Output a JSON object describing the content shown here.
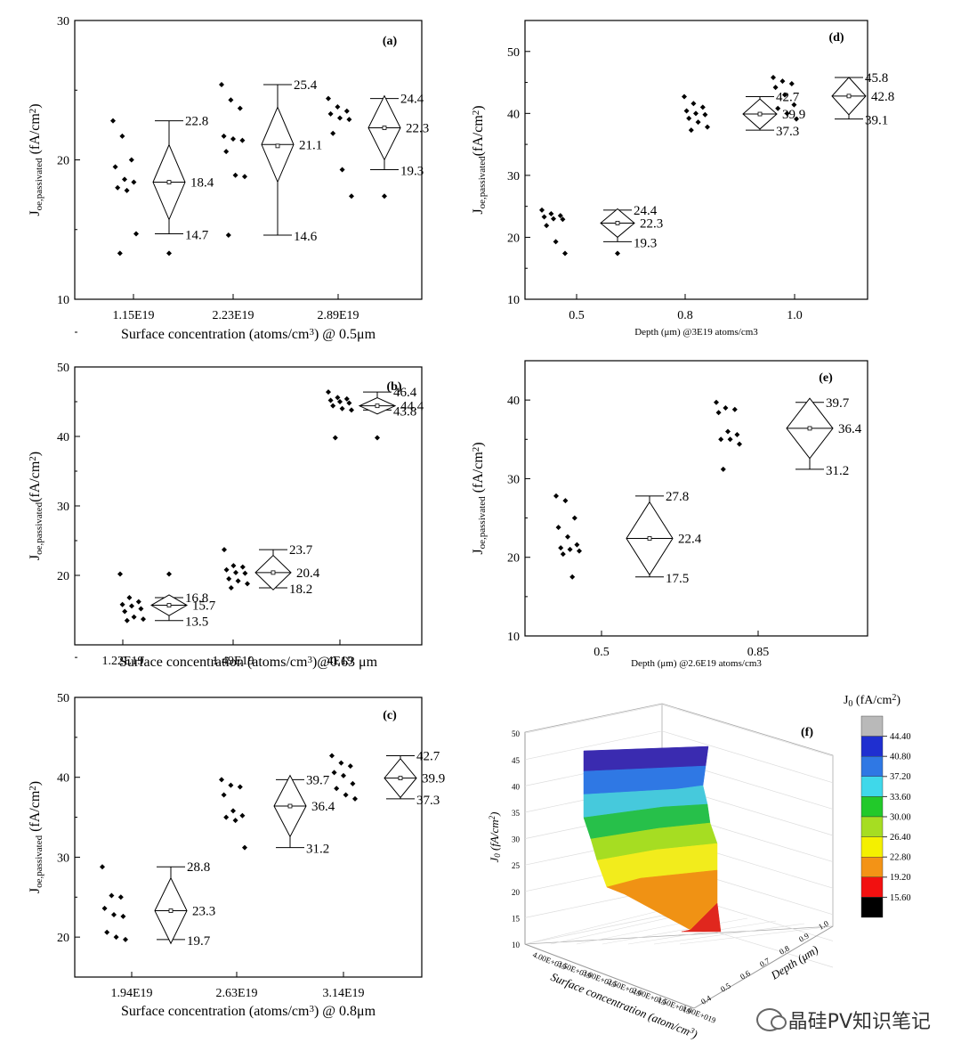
{
  "chart_data": [
    {
      "panel": "(a)",
      "type": "scatter",
      "xlabel_parts": [
        "Surface concentration ",
        "(",
        "atoms/cm",
        "3",
        ") @ 0.5μm"
      ],
      "ylabel_parts": [
        "J",
        "oe,passivated",
        " (fA/cm",
        "2",
        ")"
      ],
      "ylim": [
        10,
        30
      ],
      "yticks": [
        10,
        20,
        30
      ],
      "categories": [
        "1.15E19",
        "2.23E19",
        "2.89E19"
      ],
      "points": [
        [
          22.8,
          21.7,
          20.0,
          19.5,
          18.6,
          18.4,
          18.0,
          17.8,
          14.7,
          13.3
        ],
        [
          25.4,
          24.3,
          23.7,
          21.7,
          21.5,
          21.4,
          20.6,
          18.9,
          18.8,
          14.6
        ],
        [
          24.4,
          23.8,
          23.5,
          23.3,
          23.0,
          22.9,
          21.9,
          19.3,
          17.4
        ]
      ],
      "box": [
        {
          "max": 22.8,
          "min": 14.7,
          "center": 18.4,
          "mean": 18.4,
          "outlier": 13.3,
          "labels": {
            "top": "22.8",
            "bottom": "14.7",
            "center": "18.4"
          }
        },
        {
          "max": 25.4,
          "min": 14.6,
          "center": 21.1,
          "mean": 21.0,
          "labels": {
            "top": "25.4",
            "bottom": "14.6",
            "center": "21.1"
          }
        },
        {
          "max": 24.4,
          "min": 19.3,
          "center": 22.3,
          "mean": 22.3,
          "outlier": 17.4,
          "labels": {
            "top": "24.4",
            "bottom": "19.3",
            "center": "22.3"
          }
        }
      ]
    },
    {
      "panel": "(b)",
      "type": "scatter",
      "xlabel_parts": [
        "Surface concentration (atoms/cm",
        "3",
        ")@0.63 μm"
      ],
      "ylabel_parts": [
        "J",
        "oe,passivated",
        "(fA/cm",
        "2",
        ")"
      ],
      "ylim": [
        10,
        50
      ],
      "yticks": [
        20,
        30,
        40,
        50
      ],
      "categories": [
        "1.22E19",
        "1.49E19",
        "4E19"
      ],
      "points": [
        [
          20.2,
          16.8,
          16.2,
          15.8,
          15.6,
          15.2,
          14.8,
          14.0,
          13.7,
          13.5
        ],
        [
          23.7,
          21.4,
          21.2,
          20.8,
          20.4,
          20.3,
          19.5,
          19.2,
          18.8,
          18.2
        ],
        [
          46.4,
          45.6,
          45.4,
          45.2,
          45.0,
          44.8,
          44.4,
          44.0,
          43.8,
          39.8
        ]
      ],
      "box": [
        {
          "max": 16.8,
          "min": 13.5,
          "center": 15.7,
          "mean": 15.7,
          "outlier": 20.2,
          "labels": {
            "top": "16.8",
            "bottom": "13.5",
            "center": "15.7"
          }
        },
        {
          "max": 23.7,
          "min": 18.2,
          "center": 20.4,
          "mean": 20.4,
          "labels": {
            "top": "23.7",
            "bottom": "18.2",
            "center": "20.4"
          }
        },
        {
          "max": 46.4,
          "min": 43.8,
          "center": 44.4,
          "mean": 44.4,
          "outlier": 39.8,
          "labels": {
            "top": "46.4",
            "bottom": "43.8",
            "center": "44.4"
          }
        }
      ]
    },
    {
      "panel": "(c)",
      "type": "scatter",
      "xlabel_parts": [
        "Surface concentration ",
        "(",
        "atoms/cm",
        "3",
        ") @ 0.8μm"
      ],
      "ylabel_parts": [
        "J",
        "oe,passivated",
        " (fA/cm",
        "2",
        ")"
      ],
      "ylim": [
        15,
        50
      ],
      "yticks": [
        20,
        30,
        40,
        50
      ],
      "categories": [
        "1.94E19",
        "2.63E19",
        "3.14E19"
      ],
      "points": [
        [
          28.8,
          25.2,
          25.0,
          23.6,
          22.8,
          22.6,
          20.6,
          20.0,
          19.7
        ],
        [
          39.7,
          39.0,
          38.8,
          37.8,
          35.8,
          35.2,
          35.0,
          34.6,
          31.2
        ],
        [
          42.7,
          41.8,
          41.4,
          40.6,
          40.2,
          39.2,
          38.6,
          37.8,
          37.3
        ]
      ],
      "box": [
        {
          "max": 28.8,
          "min": 19.7,
          "center": 23.3,
          "mean": 23.3,
          "labels": {
            "top": "28.8",
            "bottom": "19.7",
            "center": "23.3"
          }
        },
        {
          "max": 39.7,
          "min": 31.2,
          "center": 36.4,
          "mean": 36.4,
          "labels": {
            "top": "39.7",
            "bottom": "31.2",
            "center": "36.4"
          }
        },
        {
          "max": 42.7,
          "min": 37.3,
          "center": 39.9,
          "mean": 39.9,
          "labels": {
            "top": "42.7",
            "bottom": "37.3",
            "center": "39.9"
          }
        }
      ]
    },
    {
      "panel": "(d)",
      "type": "scatter",
      "xlabel_parts": [
        "Depth (μm) @3E19 atoms/cm",
        "3"
      ],
      "ylabel_parts": [
        "J",
        "oe,passivated",
        "(fA/cm",
        "2",
        ")"
      ],
      "ylim": [
        10,
        55
      ],
      "yticks": [
        10,
        20,
        30,
        40,
        50
      ],
      "categories": [
        "0.5",
        "0.8",
        "1.0"
      ],
      "points": [
        [
          24.4,
          23.8,
          23.5,
          23.3,
          23.0,
          22.9,
          21.9,
          19.3,
          17.4
        ],
        [
          42.7,
          41.6,
          41.0,
          40.4,
          40.0,
          39.8,
          39.2,
          38.6,
          37.8,
          37.3
        ],
        [
          45.8,
          45.2,
          44.8,
          44.2,
          43.0,
          41.4,
          40.8,
          40.0,
          39.1
        ]
      ],
      "box": [
        {
          "max": 24.4,
          "min": 19.3,
          "center": 22.3,
          "mean": 22.3,
          "outlier": 17.4,
          "labels": {
            "top": "24.4",
            "bottom": "19.3",
            "center": "22.3"
          }
        },
        {
          "max": 42.7,
          "min": 37.3,
          "center": 39.9,
          "mean": 39.9,
          "labels": {
            "top": "42.7",
            "bottom": "37.3",
            "center": "39.9"
          }
        },
        {
          "max": 45.8,
          "min": 39.1,
          "center": 42.8,
          "mean": 42.8,
          "labels": {
            "top": "45.8",
            "bottom": "39.1",
            "center": "42.8"
          }
        }
      ]
    },
    {
      "panel": "(e)",
      "type": "scatter",
      "xlabel_parts": [
        "Depth (μm) @2.6E19 atoms/cm",
        "3"
      ],
      "ylabel_parts": [
        "J",
        "oe,passivated",
        " (fA/cm",
        "2",
        ")"
      ],
      "ylim": [
        10,
        45
      ],
      "yticks": [
        10,
        20,
        30,
        40
      ],
      "categories": [
        "0.5",
        "0.85"
      ],
      "points": [
        [
          27.8,
          27.2,
          25.0,
          23.8,
          22.6,
          21.6,
          21.2,
          21.0,
          20.8,
          20.4,
          17.5
        ],
        [
          39.7,
          39.0,
          38.8,
          38.4,
          36.0,
          35.6,
          35.0,
          35.0,
          34.4,
          31.2
        ]
      ],
      "box": [
        {
          "max": 27.8,
          "min": 17.5,
          "center": 22.4,
          "mean": 22.4,
          "labels": {
            "top": "27.8",
            "bottom": "17.5",
            "center": "22.4"
          }
        },
        {
          "max": 39.7,
          "min": 31.2,
          "center": 36.4,
          "mean": 36.4,
          "labels": {
            "top": "39.7",
            "bottom": "31.2",
            "center": "36.4"
          }
        }
      ]
    },
    {
      "panel": "(f)",
      "type": "surface3d",
      "zlabel_parts": [
        "J",
        "0",
        " (fA/cm",
        "2",
        ")"
      ],
      "xlabel": "Surface concentration (atom/cm",
      "xlabel_sup": "3",
      "xlabel_end": ")",
      "ylabel": "Depth (μm)",
      "zticks": [
        "10",
        "15",
        "20",
        "25",
        "30",
        "35",
        "40",
        "45",
        "50"
      ],
      "xticks": [
        "4.00E+019",
        "3.50E+019",
        "3.00E+019",
        "2.50E+019",
        "2.00E+019",
        "1.50E+019",
        "1.00E+019"
      ],
      "yticks": [
        "0.4",
        "0.5",
        "0.6",
        "0.7",
        "0.8",
        "0.9",
        "1.0"
      ],
      "legend_title_parts": [
        "J",
        "0",
        " (fA/cm",
        "2",
        ")"
      ],
      "legend": [
        {
          "label": "44.40",
          "color": "#b9b9b9"
        },
        {
          "label": "40.80",
          "color": "#1f2fd0"
        },
        {
          "label": "37.20",
          "color": "#2f78e4"
        },
        {
          "label": "33.60",
          "color": "#3fd8ea"
        },
        {
          "label": "30.00",
          "color": "#22c92a"
        },
        {
          "label": "26.40",
          "color": "#a6dd22"
        },
        {
          "label": "22.80",
          "color": "#f4f000"
        },
        {
          "label": "19.20",
          "color": "#f39316"
        },
        {
          "label": "15.60",
          "color": "#f21010"
        },
        {
          "label": "",
          "color": "#000000"
        }
      ],
      "surface_bands": [
        {
          "color": "#3a2bb0"
        },
        {
          "color": "#2f78e4"
        },
        {
          "color": "#46c9dc"
        },
        {
          "color": "#27c04a"
        },
        {
          "color": "#a6dd22"
        },
        {
          "color": "#f2ec1c"
        },
        {
          "color": "#f09214"
        },
        {
          "color": "#e0271e"
        }
      ]
    }
  ],
  "watermark": {
    "text": "晶硅PV知识笔记",
    "icon": "wechat-icon"
  }
}
